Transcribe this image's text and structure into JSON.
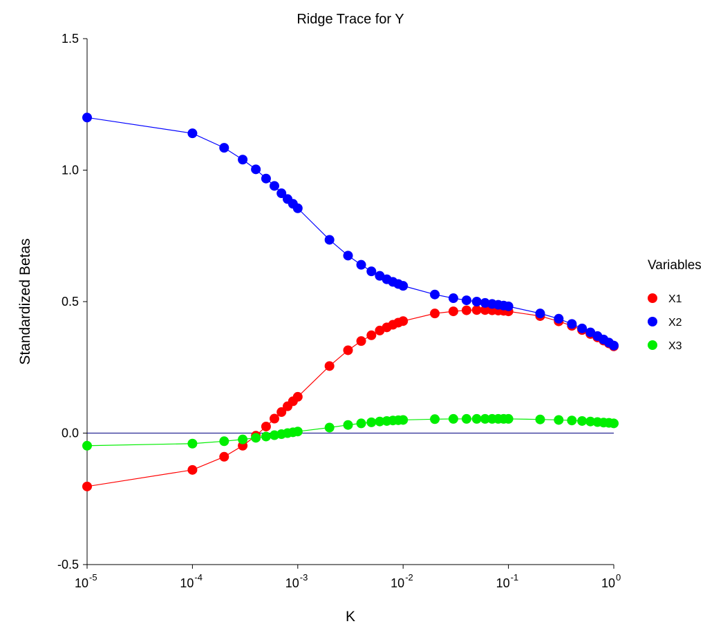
{
  "chart_data": {
    "type": "line",
    "title": "Ridge Trace for Y",
    "xlabel": "K",
    "ylabel": "Standardized Betas",
    "xscale": "log",
    "xlim": [
      1e-05,
      1
    ],
    "ylim": [
      -0.5,
      1.5
    ],
    "x_ticks": [
      {
        "base": "10",
        "exp": "-5"
      },
      {
        "base": "10",
        "exp": "-4"
      },
      {
        "base": "10",
        "exp": "-3"
      },
      {
        "base": "10",
        "exp": "-2"
      },
      {
        "base": "10",
        "exp": "-1"
      },
      {
        "base": "10",
        "exp": "0"
      }
    ],
    "y_ticks": [
      "-0.5",
      "0.0",
      "0.5",
      "1.0",
      "1.5"
    ],
    "reference_line_y": 0,
    "legend": {
      "title": "Variables",
      "position": "right"
    },
    "x": [
      1e-05,
      0.0001,
      0.0002,
      0.0003,
      0.0004,
      0.0005,
      0.0006,
      0.0007,
      0.0008,
      0.0009,
      0.001,
      0.002,
      0.003,
      0.004,
      0.005,
      0.006,
      0.007,
      0.008,
      0.009,
      0.01,
      0.02,
      0.03,
      0.04,
      0.05,
      0.06,
      0.07,
      0.08,
      0.09,
      0.1,
      0.2,
      0.3,
      0.4,
      0.5,
      0.6,
      0.7,
      0.8,
      0.9,
      1.0
    ],
    "series": [
      {
        "name": "X1",
        "color": "#ff0000",
        "values": [
          -0.203,
          -0.14,
          -0.09,
          -0.048,
          -0.01,
          0.025,
          0.055,
          0.08,
          0.102,
          0.121,
          0.138,
          0.255,
          0.315,
          0.35,
          0.372,
          0.39,
          0.402,
          0.412,
          0.42,
          0.426,
          0.455,
          0.463,
          0.467,
          0.468,
          0.468,
          0.467,
          0.466,
          0.465,
          0.463,
          0.445,
          0.425,
          0.408,
          0.392,
          0.377,
          0.364,
          0.352,
          0.341,
          0.33
        ]
      },
      {
        "name": "X2",
        "color": "#0000ff",
        "values": [
          1.2,
          1.14,
          1.085,
          1.04,
          1.003,
          0.968,
          0.94,
          0.912,
          0.89,
          0.872,
          0.855,
          0.735,
          0.675,
          0.64,
          0.615,
          0.598,
          0.585,
          0.575,
          0.567,
          0.56,
          0.527,
          0.513,
          0.505,
          0.5,
          0.495,
          0.491,
          0.488,
          0.485,
          0.482,
          0.455,
          0.435,
          0.415,
          0.398,
          0.383,
          0.369,
          0.356,
          0.344,
          0.333
        ]
      },
      {
        "name": "X3",
        "color": "#00ee00",
        "values": [
          -0.048,
          -0.04,
          -0.031,
          -0.024,
          -0.018,
          -0.013,
          -0.008,
          -0.004,
          0.0,
          0.003,
          0.006,
          0.021,
          0.031,
          0.037,
          0.041,
          0.044,
          0.046,
          0.048,
          0.049,
          0.05,
          0.053,
          0.054,
          0.054,
          0.054,
          0.054,
          0.054,
          0.054,
          0.054,
          0.054,
          0.052,
          0.05,
          0.048,
          0.046,
          0.044,
          0.042,
          0.04,
          0.039,
          0.037
        ]
      }
    ]
  }
}
